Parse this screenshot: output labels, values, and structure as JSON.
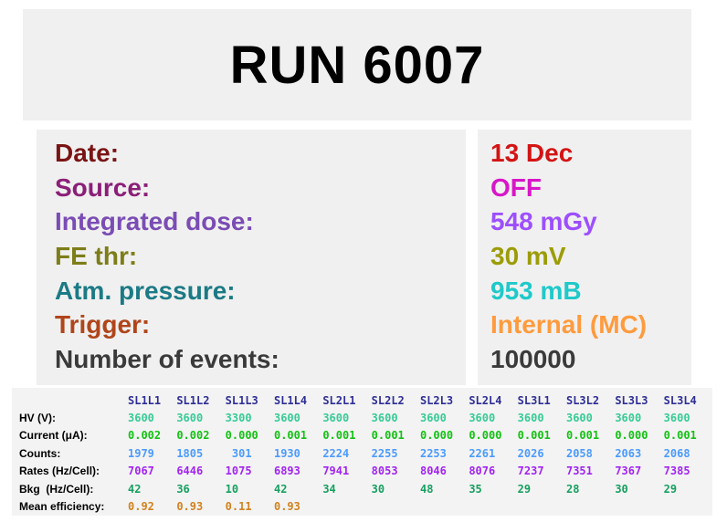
{
  "title": "RUN 6007",
  "info": {
    "rows": [
      {
        "label": "Date:",
        "value": "13 Dec",
        "label_color": "#7a1414",
        "value_color": "#d31414"
      },
      {
        "label": "Source:",
        "value": "OFF",
        "label_color": "#8b1f78",
        "value_color": "#d816c8"
      },
      {
        "label": "Integrated dose:",
        "value": "548 mGy",
        "label_color": "#7a4cb4",
        "value_color": "#9d4fff"
      },
      {
        "label": "FE thr:",
        "value": "30 mV",
        "label_color": "#7d7d19",
        "value_color": "#9c9c08"
      },
      {
        "label": "Atm. pressure:",
        "value": "953 mB",
        "label_color": "#1b7a85",
        "value_color": "#1fc9c9"
      },
      {
        "label": "Trigger:",
        "value": "Internal (MC)",
        "label_color": "#b0451a",
        "value_color": "#ff9b3d"
      },
      {
        "label": "Number of events:",
        "value": "100000",
        "label_color": "#3a3a3a",
        "value_color": "#3a3a3a"
      }
    ]
  },
  "table": {
    "header_color": "#2e2e96",
    "columns": [
      "SL1L1",
      "SL1L2",
      "SL1L3",
      "SL1L4",
      "SL2L1",
      "SL2L2",
      "SL2L3",
      "SL2L4",
      "SL3L1",
      "SL3L2",
      "SL3L3",
      "SL3L4"
    ],
    "rows": [
      {
        "label": "HV (V):",
        "color": "#36cc96",
        "values": [
          "3600",
          "3600",
          "3300",
          "3600",
          "3600",
          "3600",
          "3600",
          "3600",
          "3600",
          "3600",
          "3600",
          "3600"
        ]
      },
      {
        "label": "Current (μA):",
        "color": "#12c212",
        "values": [
          "0.002",
          "0.002",
          "0.000",
          "0.001",
          "0.001",
          "0.001",
          "0.000",
          "0.000",
          "0.001",
          "0.001",
          "0.000",
          "0.001"
        ]
      },
      {
        "label": "Counts:",
        "color": "#4a9bff",
        "values": [
          "1979",
          "1805",
          " 301",
          "1930",
          "2224",
          "2255",
          "2253",
          "2261",
          "2026",
          "2058",
          "2063",
          "2068"
        ]
      },
      {
        "label": "Rates (Hz/Cell):",
        "color": "#a223f2",
        "values": [
          "7067",
          "6446",
          "1075",
          "6893",
          "7941",
          "8053",
          "8046",
          "8076",
          "7237",
          "7351",
          "7367",
          "7385"
        ]
      },
      {
        "label": "Bkg  (Hz/Cell):",
        "color": "#16a060",
        "values": [
          "42",
          "36",
          "10",
          "42",
          "34",
          "30",
          "48",
          "35",
          "29",
          "28",
          "30",
          "29"
        ]
      },
      {
        "label": "Mean efficiency:",
        "color": "#d2821e",
        "values": [
          "0.92",
          "0.93",
          "0.11",
          "0.93",
          "",
          "",
          "",
          "",
          "",
          "",
          "",
          ""
        ]
      }
    ]
  }
}
